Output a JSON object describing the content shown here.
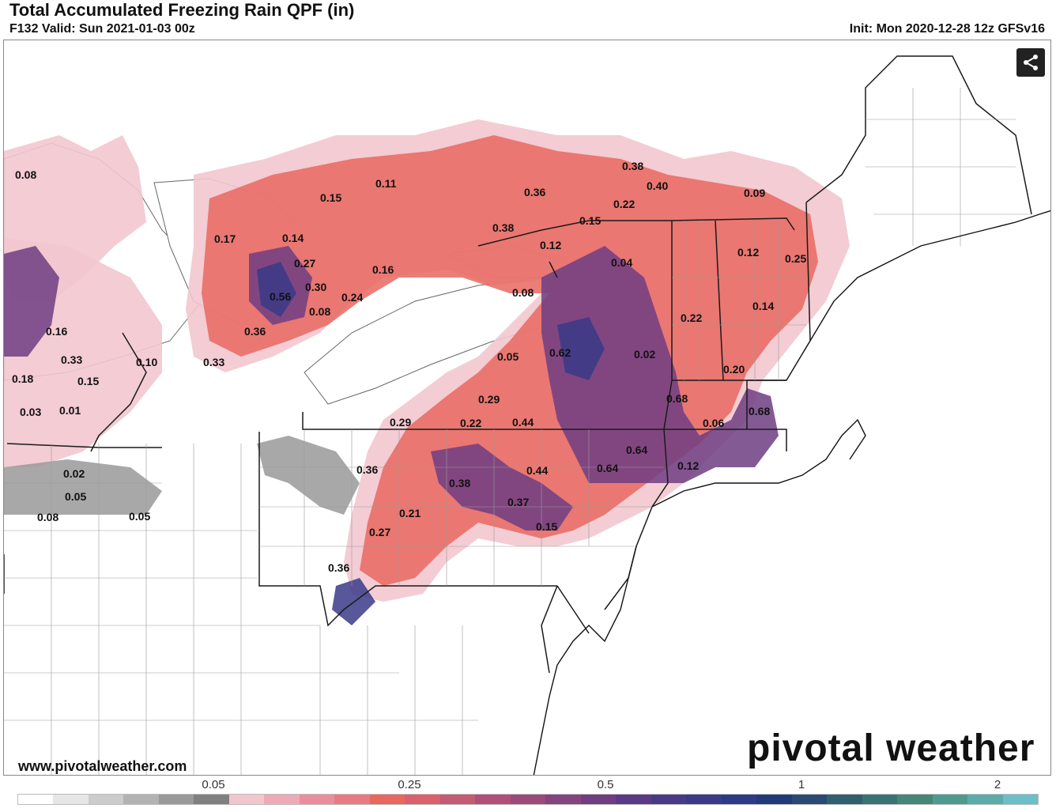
{
  "header": {
    "title": "Total Accumulated Freezing Rain QPF (in)",
    "valid": "F132 Valid: Sun 2021-01-03 00z",
    "init": "Init: Mon 2020-12-28 12z GFSv16"
  },
  "brand": {
    "logo": "pivotal weather",
    "website": "www.pivotalweather.com"
  },
  "share_icon": "share-icon",
  "colorbar": {
    "colors": [
      "#ffffff",
      "#e6e6e6",
      "#cccccc",
      "#b3b3b3",
      "#999999",
      "#808080",
      "#f2c6cf",
      "#eeaab6",
      "#ea8e9c",
      "#e87a83",
      "#e8675f",
      "#d9606c",
      "#c45a73",
      "#b04f77",
      "#9a4a7b",
      "#84447f",
      "#6e3d82",
      "#5b3a85",
      "#4a3a86",
      "#3a3a88",
      "#2d3b86",
      "#223a78",
      "#2a4a74",
      "#30606f",
      "#3a7472",
      "#458676",
      "#4f9a8e",
      "#5bacaa",
      "#6abfc8"
    ],
    "ticks": [
      {
        "label": "0.05",
        "value": 0.05
      },
      {
        "label": "0.25",
        "value": 0.25
      },
      {
        "label": "0.5",
        "value": 0.5
      },
      {
        "label": "1",
        "value": 1
      },
      {
        "label": "2",
        "value": 2
      }
    ]
  },
  "map": {
    "colors": {
      "light": "#f2c6cf",
      "mid": "#e8675f",
      "rose": "#eeaab6",
      "dark": "#6e3d82",
      "deep": "#3a3a88",
      "gray": "#999999"
    },
    "labels": [
      {
        "text": "0.08"
      },
      {
        "text": "0.11"
      },
      {
        "text": "0.38"
      },
      {
        "text": "0.40"
      },
      {
        "text": "0.36"
      },
      {
        "text": "0.22"
      },
      {
        "text": "0.09"
      },
      {
        "text": "0.15"
      },
      {
        "text": "0.15"
      },
      {
        "text": "0.38"
      },
      {
        "text": "0.17"
      },
      {
        "text": "0.14"
      },
      {
        "text": "0.12"
      },
      {
        "text": "0.12"
      },
      {
        "text": "0.25"
      },
      {
        "text": "0.04"
      },
      {
        "text": "0.27"
      },
      {
        "text": "0.16"
      },
      {
        "text": "0.30"
      },
      {
        "text": "0.56"
      },
      {
        "text": "0.24"
      },
      {
        "text": "0.08"
      },
      {
        "text": "0.08"
      },
      {
        "text": "0.14"
      },
      {
        "text": "0.22"
      },
      {
        "text": "0.16"
      },
      {
        "text": "0.36"
      },
      {
        "text": "0.33"
      },
      {
        "text": "0.10"
      },
      {
        "text": "0.33"
      },
      {
        "text": "0.05"
      },
      {
        "text": "0.62"
      },
      {
        "text": "0.02"
      },
      {
        "text": "0.20"
      },
      {
        "text": "0.18"
      },
      {
        "text": "0.15"
      },
      {
        "text": "0.03"
      },
      {
        "text": "0.01"
      },
      {
        "text": "0.29"
      },
      {
        "text": "0.68"
      },
      {
        "text": "0.68"
      },
      {
        "text": "0.29"
      },
      {
        "text": "0.22"
      },
      {
        "text": "0.44"
      },
      {
        "text": "0.06"
      },
      {
        "text": "0.64"
      },
      {
        "text": "0.02"
      },
      {
        "text": "0.36"
      },
      {
        "text": "0.44"
      },
      {
        "text": "0.64"
      },
      {
        "text": "0.12"
      },
      {
        "text": "0.05"
      },
      {
        "text": "0.38"
      },
      {
        "text": "0.08"
      },
      {
        "text": "0.05"
      },
      {
        "text": "0.37"
      },
      {
        "text": "0.21"
      },
      {
        "text": "0.15"
      },
      {
        "text": "0.27"
      },
      {
        "text": "0.36"
      }
    ]
  }
}
